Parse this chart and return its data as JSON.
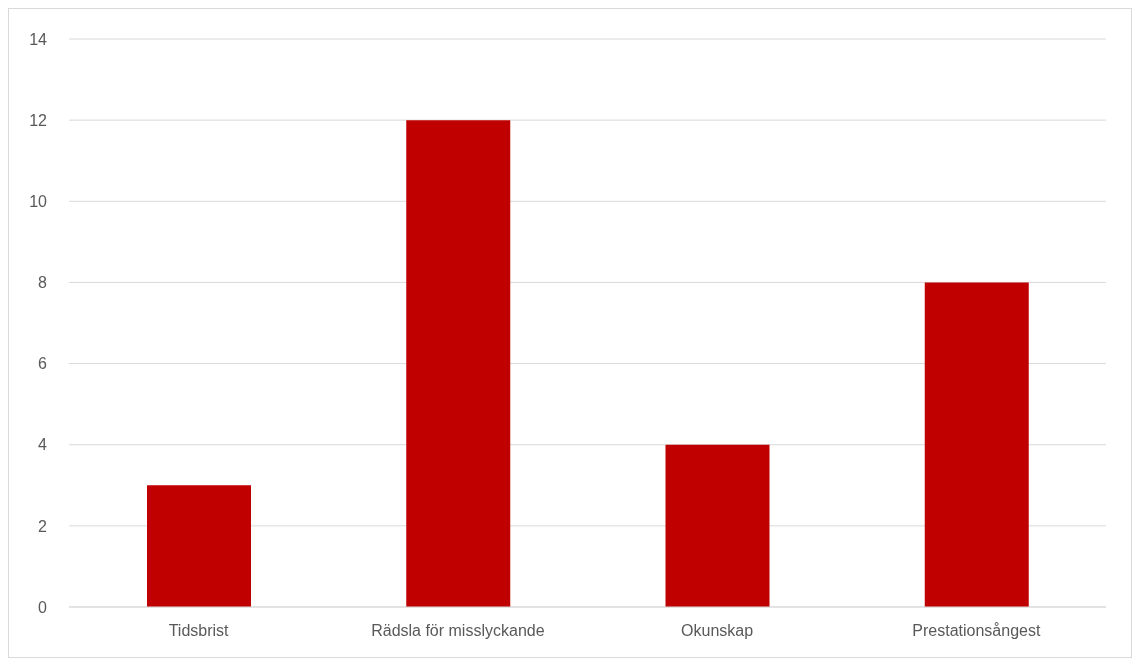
{
  "chart_data": {
    "type": "bar",
    "categories": [
      "Tidsbrist",
      "Rädsla för misslyckande",
      "Okunskap",
      "Prestationsångest"
    ],
    "values": [
      3,
      12,
      4,
      8
    ],
    "color": "#c00000",
    "ylim": [
      0,
      14
    ],
    "yticks": [
      0,
      2,
      4,
      6,
      8,
      10,
      12,
      14
    ],
    "grid": "y",
    "legend": false
  }
}
